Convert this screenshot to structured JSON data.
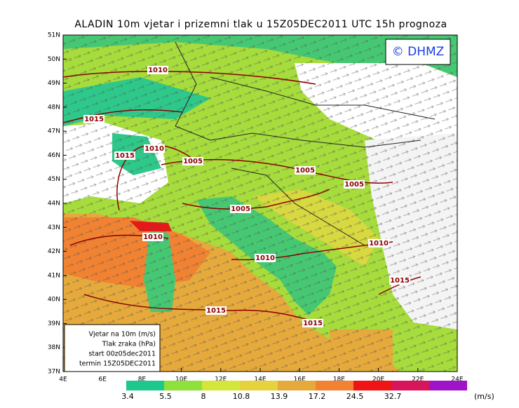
{
  "header": {
    "title": "ALADIN  10m  vjetar  i  prizemni  tlak  u  15Z05DEC2011  UTC  15h  prognoza",
    "logo": "© DHMZ"
  },
  "axes": {
    "latitudes": [
      "51N",
      "50N",
      "49N",
      "48N",
      "47N",
      "46N",
      "45N",
      "44N",
      "43N",
      "42N",
      "41N",
      "40N",
      "39N",
      "38N",
      "37N"
    ],
    "longitudes": [
      "4E",
      "6E",
      "8E",
      "10E",
      "12E",
      "14E",
      "16E",
      "18E",
      "20E",
      "22E",
      "24E"
    ]
  },
  "isobars": [
    "1010",
    "1015",
    "1015",
    "1010",
    "1005",
    "1005",
    "1005",
    "1005",
    "1010",
    "1010",
    "1010",
    "1015",
    "1015",
    "1015"
  ],
  "info_box": [
    "Vjetar na 10m (m/s)",
    "Tlak zraka (hPa)",
    "start 00z05dec2011",
    "termin 15Z05DEC2011"
  ],
  "legend": {
    "labels": [
      "3.4",
      "5.5",
      "8",
      "10.8",
      "13.9",
      "17.2",
      "24.5",
      "32.7"
    ],
    "unit": "(m/s)"
  }
}
